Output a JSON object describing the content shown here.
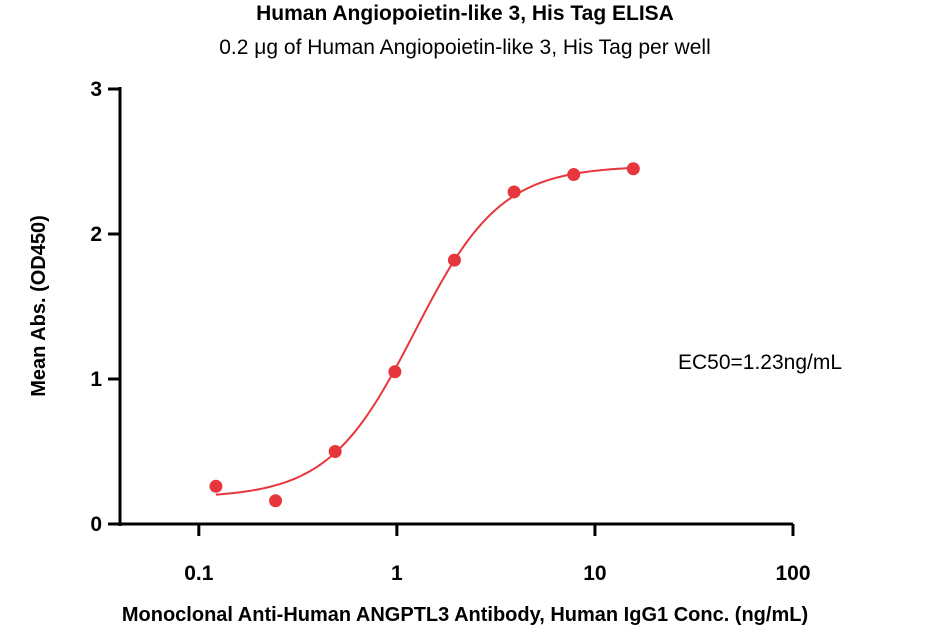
{
  "chart_data": {
    "type": "scatter",
    "title": "Human Angiopoietin-like 3, His Tag ELISA",
    "subtitle": "0.2 μg of Human Angiopoietin-like 3, His Tag per well",
    "xlabel": "Monoclonal Anti-Human ANGPTL3 Antibody, Human IgG1 Conc. (ng/mL)",
    "ylabel": "Mean Abs. (OD450)",
    "x_scale": "log",
    "xlim": [
      0.04,
      100
    ],
    "ylim": [
      0,
      3
    ],
    "x_ticks": [
      "0.1",
      "1",
      "10",
      "100"
    ],
    "y_ticks": [
      "0",
      "1",
      "2",
      "3"
    ],
    "grid": false,
    "annotation": "EC50=1.23ng/mL",
    "series": [
      {
        "x": [
          0.122,
          0.244,
          0.488,
          0.977,
          1.953,
          3.906,
          7.813,
          15.625
        ],
        "y": [
          0.26,
          0.16,
          0.5,
          1.05,
          1.82,
          2.29,
          2.41,
          2.45
        ]
      }
    ],
    "fit": {
      "bottom": 0.18,
      "top": 2.47,
      "ec50": 1.23,
      "hill": 2.0
    },
    "color": "#e8363d"
  }
}
